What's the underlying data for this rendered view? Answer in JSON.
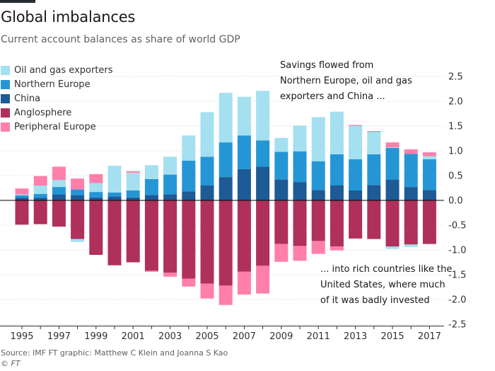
{
  "title": "Global imbalances",
  "subtitle": "Current account balances as share of world GDP",
  "annotations": {
    "top": "Savings flowed from Northern Europe, oil and gas exporters and China ...",
    "bottom": "... into rich countries like the United States, where much of it was badly invested"
  },
  "source": "Source: IMF   FT graphic: Matthew C Klein and Joanna S Kao",
  "copyright": "© FT",
  "chart_data": {
    "type": "bar",
    "stacked": true,
    "categories": [
      1995,
      1996,
      1997,
      1998,
      1999,
      2000,
      2001,
      2002,
      2003,
      2004,
      2005,
      2006,
      2007,
      2008,
      2009,
      2010,
      2011,
      2012,
      2013,
      2014,
      2015,
      2016,
      2017
    ],
    "x_tick_labels": [
      "1995",
      "1997",
      "1999",
      "2001",
      "2003",
      "2005",
      "2007",
      "2009",
      "2011",
      "2013",
      "2015",
      "2017"
    ],
    "y_ticks": [
      2.5,
      2.0,
      1.5,
      1.0,
      0.5,
      0.0,
      -0.5,
      -1.0,
      -1.5,
      -2.0,
      -2.5
    ],
    "y_tick_labels": [
      "2.5",
      "2.0",
      "1.5",
      "1.0",
      "0.5",
      "0.0",
      "-0.5",
      "-1.0",
      "-1.5",
      "-2.0",
      "-2.5"
    ],
    "ylim": [
      -2.5,
      2.5
    ],
    "y_axis_position": "right",
    "legend_position": "top-left",
    "series": [
      {
        "name": "China",
        "color": "#1d5a96",
        "values": [
          0.05,
          0.05,
          0.12,
          0.1,
          0.06,
          0.08,
          0.06,
          0.11,
          0.12,
          0.18,
          0.3,
          0.47,
          0.63,
          0.68,
          0.42,
          0.37,
          0.21,
          0.3,
          0.2,
          0.31,
          0.42,
          0.27,
          0.21
        ]
      },
      {
        "name": "Northern Europe",
        "color": "#2596d5",
        "values": [
          0.05,
          0.08,
          0.15,
          0.12,
          0.11,
          0.08,
          0.14,
          0.32,
          0.4,
          0.62,
          0.58,
          0.7,
          0.68,
          0.53,
          0.56,
          0.62,
          0.58,
          0.63,
          0.63,
          0.62,
          0.64,
          0.67,
          0.62
        ]
      },
      {
        "name": "Oil and gas exporters",
        "color": "#a4e0f0",
        "values": [
          0.02,
          0.17,
          0.14,
          0.0,
          0.18,
          0.54,
          0.36,
          0.28,
          0.36,
          0.51,
          0.9,
          1.0,
          0.78,
          1.0,
          0.28,
          0.52,
          0.89,
          0.86,
          0.67,
          0.45,
          0.01,
          0.0,
          0.06
        ]
      },
      {
        "name": "Peripheral Europe",
        "color": "#ff7fab",
        "values": [
          0.12,
          0.19,
          0.27,
          0.22,
          0.18,
          0.0,
          0.03,
          0.0,
          0.0,
          0.0,
          0.0,
          0.0,
          0.0,
          0.0,
          0.0,
          0.0,
          0.0,
          0.0,
          0.02,
          0.02,
          0.1,
          0.09,
          0.08
        ]
      },
      {
        "name": "Anglosphere",
        "color": "#b0305c",
        "values": [
          -0.49,
          -0.48,
          -0.53,
          -0.78,
          -1.1,
          -1.31,
          -1.25,
          -1.42,
          -1.46,
          -1.58,
          -1.68,
          -1.72,
          -1.44,
          -1.32,
          -0.88,
          -0.92,
          -0.82,
          -0.93,
          -0.77,
          -0.78,
          -0.93,
          -0.89,
          -0.88
        ]
      },
      {
        "name": "Peripheral Europe (deficit)",
        "color": "#ff7fab",
        "values": [
          0.0,
          0.0,
          0.0,
          0.0,
          0.0,
          0.0,
          0.0,
          -0.02,
          -0.08,
          -0.16,
          -0.3,
          -0.39,
          -0.46,
          -0.56,
          -0.36,
          -0.3,
          -0.26,
          -0.08,
          0.0,
          0.0,
          0.0,
          0.0,
          0.0
        ]
      },
      {
        "name": "Oil and gas exporters (deficit)",
        "color": "#a4e0f0",
        "values": [
          0.0,
          0.0,
          0.0,
          -0.06,
          0.0,
          0.0,
          0.0,
          0.0,
          0.0,
          0.0,
          0.0,
          0.0,
          0.0,
          0.0,
          0.0,
          0.0,
          0.0,
          0.0,
          0.0,
          0.0,
          -0.05,
          -0.05,
          0.0
        ]
      }
    ],
    "legend": [
      {
        "name": "Oil and gas exporters",
        "color": "#a4e0f0"
      },
      {
        "name": "Northern Europe",
        "color": "#2596d5"
      },
      {
        "name": "China",
        "color": "#1d5a96"
      },
      {
        "name": "Anglosphere",
        "color": "#b0305c"
      },
      {
        "name": "Peripheral Europe",
        "color": "#ff7fab"
      }
    ]
  }
}
